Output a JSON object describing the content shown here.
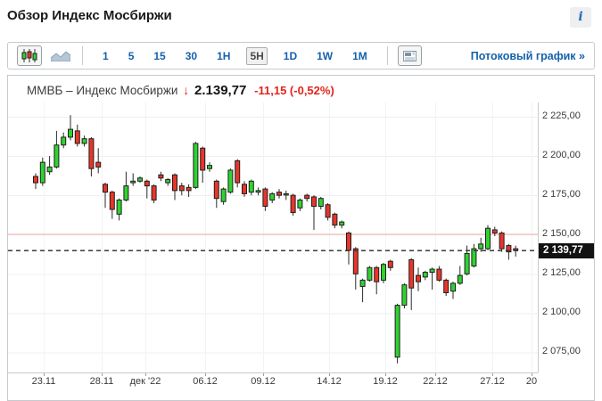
{
  "page": {
    "title": "Обзор Индекс Мосбиржи",
    "info_icon": "i"
  },
  "toolbar": {
    "view_icons": [
      "candlestick-chart",
      "area-chart",
      "quote-board"
    ],
    "timeframes": [
      "1",
      "5",
      "15",
      "30",
      "1H",
      "5H",
      "1D",
      "1W",
      "1M"
    ],
    "selected_timeframe": "5H",
    "stream_link": "Потоковый график »"
  },
  "chart_header": {
    "instrument": "ММВБ – Индекс Мосбиржи",
    "direction_arrow": "↓",
    "price": "2.139,77",
    "change": "-11,15 (-0,52%)"
  },
  "colors": {
    "up_fill": "#2fd32f",
    "down_fill": "#e8352a",
    "candle_stroke": "#1f1f1f",
    "wick": "#2a2a2a",
    "grid_h": "#efefef",
    "grid_v": "#f3f3f3",
    "axis": "#c9c9c9",
    "tick": "#a0a0a0",
    "prev_close_line": "#f2a9a4",
    "last_price_line": "#3a3a3a",
    "link_blue": "#1661ab",
    "negative_red": "#e3241c"
  },
  "chart_data": {
    "type": "candlestick",
    "title": "ММВБ – Индекс Мосбиржи, 5H",
    "last_price": 2139.77,
    "last_price_label": "2 139,77",
    "prev_close_line": 2150.5,
    "ylim": [
      2062,
      2232
    ],
    "grid": true,
    "y_axis_side": "right",
    "y_ticks": [
      {
        "value": 2225,
        "label": "2 225,00"
      },
      {
        "value": 2200,
        "label": "2 200,00"
      },
      {
        "value": 2175,
        "label": "2 175,00"
      },
      {
        "value": 2150,
        "label": "2 150,00"
      },
      {
        "value": 2125,
        "label": "2 125,00"
      },
      {
        "value": 2100,
        "label": "2 100,00"
      },
      {
        "value": 2075,
        "label": "2 075,00"
      }
    ],
    "x_ticks": [
      {
        "px": 49,
        "label": "23.11"
      },
      {
        "px": 114,
        "label": "28.11"
      },
      {
        "px": 163,
        "label": "дек '22"
      },
      {
        "px": 230,
        "label": "06.12"
      },
      {
        "px": 295,
        "label": "09.12"
      },
      {
        "px": 369,
        "label": "14.12"
      },
      {
        "px": 432,
        "label": "19.12"
      },
      {
        "px": 488,
        "label": "22.12"
      },
      {
        "px": 552,
        "label": "27.12"
      },
      {
        "px": 596,
        "label": "20"
      }
    ],
    "candles_ohlc": [
      [
        2187,
        2189,
        2179,
        2183
      ],
      [
        2183,
        2199,
        2181,
        2196
      ],
      [
        2190,
        2200,
        2188,
        2193
      ],
      [
        2193,
        2216,
        2192,
        2207
      ],
      [
        2207,
        2215,
        2205,
        2212
      ],
      [
        2212,
        2226,
        2210,
        2217
      ],
      [
        2216,
        2220,
        2206,
        2208
      ],
      [
        2208,
        2213,
        2206,
        2211
      ],
      [
        2211,
        2212,
        2187,
        2192
      ],
      [
        2196,
        2205,
        2189,
        2193
      ],
      [
        2182,
        2183,
        2167,
        2177
      ],
      [
        2177,
        2178,
        2160,
        2166
      ],
      [
        2163,
        2173,
        2159,
        2172
      ],
      [
        2172,
        2190,
        2171,
        2181
      ],
      [
        2183,
        2189,
        2181,
        2184
      ],
      [
        2184,
        2187,
        2183,
        2186
      ],
      [
        2184,
        2185,
        2173,
        2181
      ],
      [
        2181,
        2182,
        2170,
        2172
      ],
      [
        2188,
        2190,
        2184,
        2186
      ],
      [
        2183,
        2186,
        2181,
        2185
      ],
      [
        2188,
        2189,
        2172,
        2178
      ],
      [
        2181,
        2183,
        2175,
        2178
      ],
      [
        2180,
        2182,
        2174,
        2178
      ],
      [
        2180,
        2209,
        2179,
        2208
      ],
      [
        2205,
        2206,
        2183,
        2191
      ],
      [
        2192,
        2196,
        2190,
        2194
      ],
      [
        2184,
        2185,
        2167,
        2173
      ],
      [
        2171,
        2180,
        2169,
        2179
      ],
      [
        2177,
        2192,
        2176,
        2191
      ],
      [
        2197,
        2198,
        2180,
        2183
      ],
      [
        2182,
        2184,
        2174,
        2176
      ],
      [
        2177,
        2185,
        2175,
        2184
      ],
      [
        2177,
        2180,
        2175,
        2178
      ],
      [
        2179,
        2180,
        2165,
        2168
      ],
      [
        2172,
        2177,
        2170,
        2176
      ],
      [
        2177,
        2179,
        2173,
        2175
      ],
      [
        2176,
        2178,
        2172,
        2176
      ],
      [
        2175,
        2176,
        2162,
        2164
      ],
      [
        2167,
        2173,
        2165,
        2172
      ],
      [
        2175,
        2176,
        2171,
        2173
      ],
      [
        2174,
        2175,
        2153,
        2168
      ],
      [
        2168,
        2174,
        2166,
        2173
      ],
      [
        2169,
        2170,
        2159,
        2161
      ],
      [
        2163,
        2164,
        2154,
        2156
      ],
      [
        2156,
        2159,
        2154,
        2158
      ],
      [
        2151,
        2152,
        2131,
        2140
      ],
      [
        2141,
        2142,
        2115,
        2125
      ],
      [
        2117,
        2122,
        2107,
        2121
      ],
      [
        2121,
        2130,
        2120,
        2129
      ],
      [
        2129,
        2130,
        2112,
        2120
      ],
      [
        2121,
        2132,
        2119,
        2131
      ],
      [
        2133,
        2134,
        2127,
        2129
      ],
      [
        2072,
        2106,
        2068,
        2105
      ],
      [
        2105,
        2119,
        2103,
        2118
      ],
      [
        2134,
        2135,
        2102,
        2116
      ],
      [
        2124,
        2129,
        2114,
        2120
      ],
      [
        2123,
        2127,
        2121,
        2126
      ],
      [
        2126,
        2129,
        2115,
        2128
      ],
      [
        2128,
        2130,
        2120,
        2121
      ],
      [
        2121,
        2122,
        2111,
        2113
      ],
      [
        2114,
        2120,
        2109,
        2119
      ],
      [
        2119,
        2130,
        2118,
        2124
      ],
      [
        2125,
        2143,
        2124,
        2138
      ],
      [
        2130,
        2144,
        2129,
        2141
      ],
      [
        2141,
        2148,
        2139,
        2144
      ],
      [
        2141,
        2156,
        2140,
        2154
      ],
      [
        2153,
        2155,
        2149,
        2151
      ],
      [
        2151,
        2152,
        2139,
        2141
      ],
      [
        2143,
        2144,
        2134,
        2139
      ],
      [
        2141,
        2143,
        2136,
        2140
      ]
    ]
  }
}
